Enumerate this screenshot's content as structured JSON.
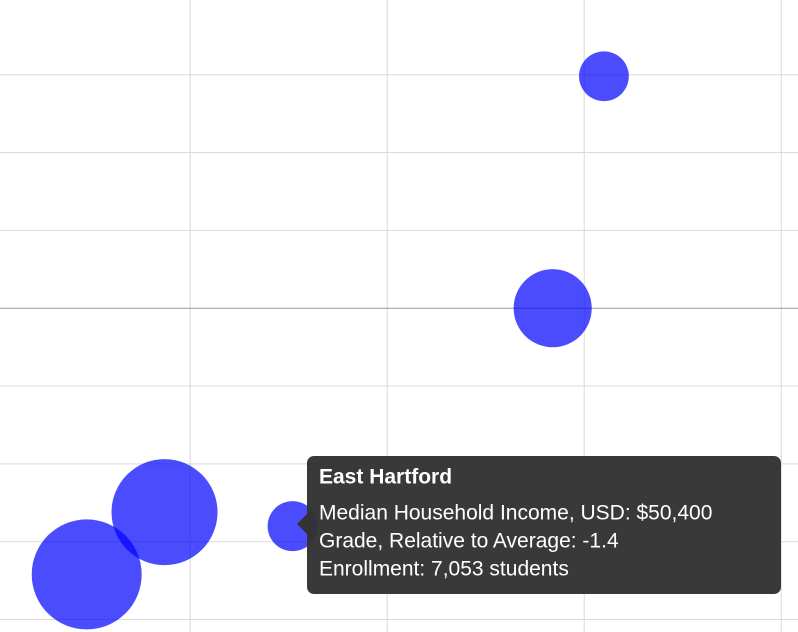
{
  "chart_data": {
    "type": "scatter",
    "xlim": [
      20700,
      101700
    ],
    "ylim": [
      -2.08,
      1.98
    ],
    "xticks": [
      40000,
      60000,
      80000,
      100000
    ],
    "yticks": [
      -2,
      -1.5,
      -1,
      -0.5,
      0,
      0.5,
      1,
      1.5
    ],
    "grid": true,
    "series": [
      {
        "color": "#0000ff",
        "x": [
          82000,
          76800,
          37400,
          29500,
          50400
        ],
        "values": [
          1.49,
          0.0,
          -1.31,
          -1.71,
          -1.4
        ],
        "size": [
          7000,
          17200,
          31700,
          34100,
          7053
        ]
      }
    ],
    "tooltip": {
      "title": "East Hartford",
      "lines": [
        "Median Household Income, USD: $50,400",
        "Grade, Relative to Average: -1.4",
        "Enrollment: 7,053 students"
      ]
    }
  }
}
